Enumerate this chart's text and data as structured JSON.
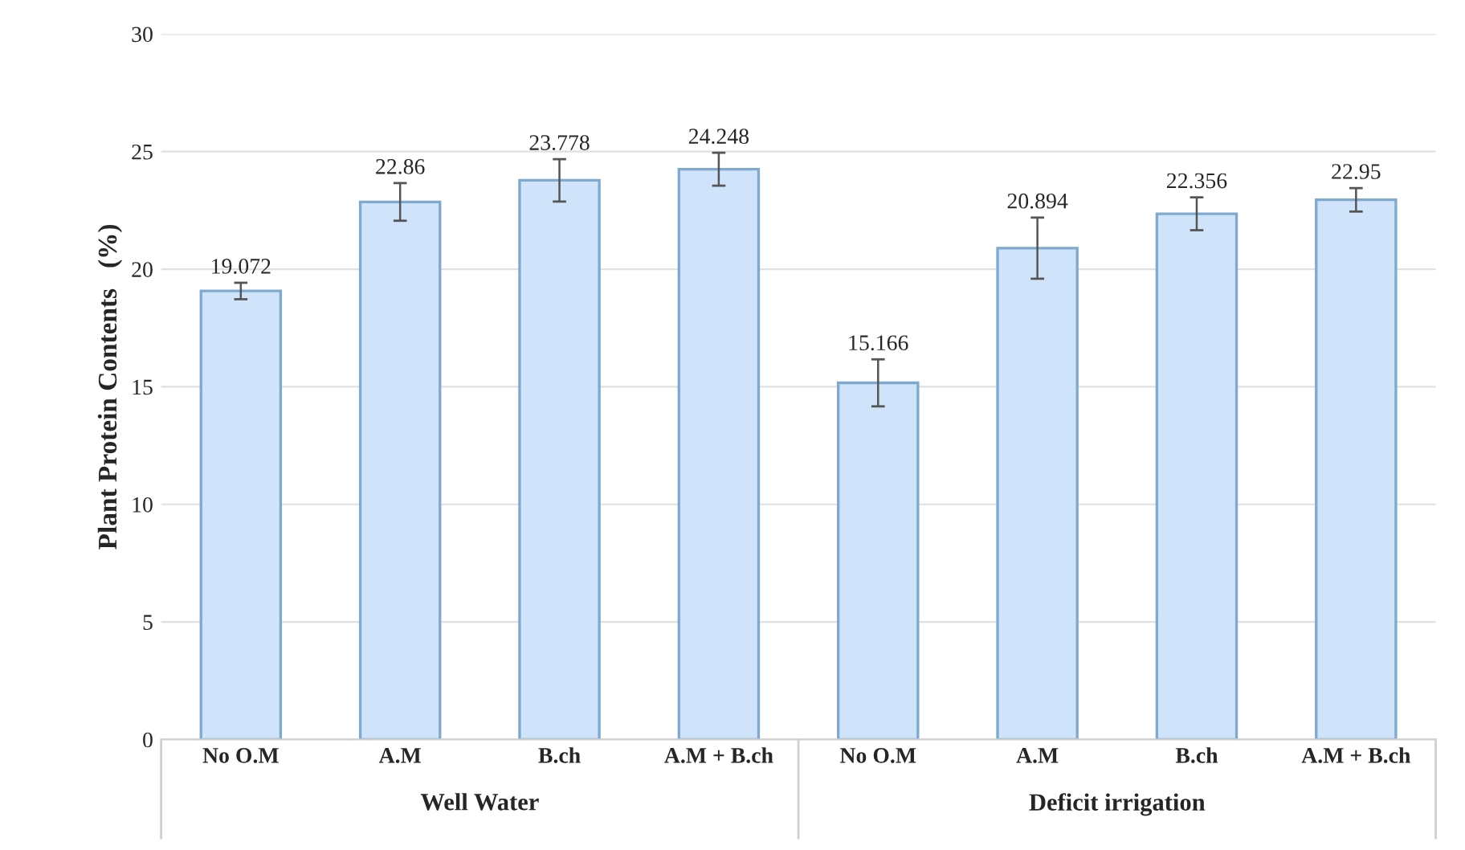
{
  "chart_data": {
    "type": "bar",
    "ylabel": "Plant Protein Contents   (%)",
    "categories": [
      "No O.M",
      "A.M",
      "B.ch",
      "A.M + B.ch",
      "No O.M",
      "A.M",
      "B.ch",
      "A.M + B.ch"
    ],
    "values": [
      19.072,
      22.86,
      23.778,
      24.248,
      15.166,
      20.894,
      22.356,
      22.95
    ],
    "errors": [
      0.35,
      0.8,
      0.9,
      0.7,
      1.0,
      1.3,
      0.7,
      0.5
    ],
    "color": "#cfe4fa",
    "ylim": [
      0,
      30
    ],
    "yticks": [
      0,
      5,
      10,
      15,
      20,
      25,
      30
    ],
    "grid": "y",
    "data_labels": true,
    "annotations": [
      "Well Water",
      "Deficit irrigation"
    ]
  }
}
